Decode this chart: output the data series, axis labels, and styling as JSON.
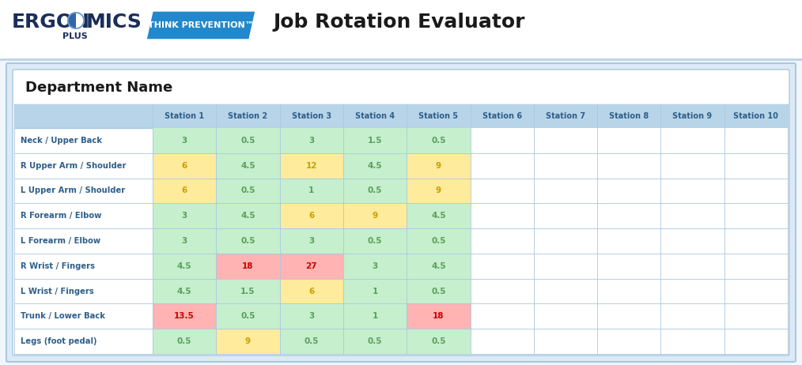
{
  "title": "Job Rotation Evaluator",
  "dept_label": "Department Name",
  "columns": [
    "",
    "Station 1",
    "Station 2",
    "Station 3",
    "Station 4",
    "Station 5",
    "Station 6",
    "Station 7",
    "Station 8",
    "Station 9",
    "Station 10"
  ],
  "rows": [
    "Neck / Upper Back",
    "R Upper Arm / Shoulder",
    "L Upper Arm / Shoulder",
    "R Forearm / Elbow",
    "L Forearm / Elbow",
    "R Wrist / Fingers",
    "L Wrist / Fingers",
    "Trunk / Lower Back",
    "Legs (foot pedal)"
  ],
  "values": [
    [
      "3",
      "0.5",
      "3",
      "1.5",
      "0.5",
      "",
      "",
      "",
      "",
      ""
    ],
    [
      "6",
      "4.5",
      "12",
      "4.5",
      "9",
      "",
      "",
      "",
      "",
      ""
    ],
    [
      "6",
      "0.5",
      "1",
      "0.5",
      "9",
      "",
      "",
      "",
      "",
      ""
    ],
    [
      "3",
      "4.5",
      "6",
      "9",
      "4.5",
      "",
      "",
      "",
      "",
      ""
    ],
    [
      "3",
      "0.5",
      "3",
      "0.5",
      "0.5",
      "",
      "",
      "",
      "",
      ""
    ],
    [
      "4.5",
      "18",
      "27",
      "3",
      "4.5",
      "",
      "",
      "",
      "",
      ""
    ],
    [
      "4.5",
      "1.5",
      "6",
      "1",
      "0.5",
      "",
      "",
      "",
      "",
      ""
    ],
    [
      "13.5",
      "0.5",
      "3",
      "1",
      "18",
      "",
      "",
      "",
      "",
      ""
    ],
    [
      "0.5",
      "9",
      "0.5",
      "0.5",
      "0.5",
      "",
      "",
      "",
      "",
      ""
    ]
  ],
  "cell_colors": [
    [
      "#c6efce",
      "#c6efce",
      "#c6efce",
      "#c6efce",
      "#c6efce",
      "#ffffff",
      "#ffffff",
      "#ffffff",
      "#ffffff",
      "#ffffff"
    ],
    [
      "#ffeb9c",
      "#c6efce",
      "#ffeb9c",
      "#c6efce",
      "#ffeb9c",
      "#ffffff",
      "#ffffff",
      "#ffffff",
      "#ffffff",
      "#ffffff"
    ],
    [
      "#ffeb9c",
      "#c6efce",
      "#c6efce",
      "#c6efce",
      "#ffeb9c",
      "#ffffff",
      "#ffffff",
      "#ffffff",
      "#ffffff",
      "#ffffff"
    ],
    [
      "#c6efce",
      "#c6efce",
      "#ffeb9c",
      "#ffeb9c",
      "#c6efce",
      "#ffffff",
      "#ffffff",
      "#ffffff",
      "#ffffff",
      "#ffffff"
    ],
    [
      "#c6efce",
      "#c6efce",
      "#c6efce",
      "#c6efce",
      "#c6efce",
      "#ffffff",
      "#ffffff",
      "#ffffff",
      "#ffffff",
      "#ffffff"
    ],
    [
      "#c6efce",
      "#ffb3b3",
      "#ffb3b3",
      "#c6efce",
      "#c6efce",
      "#ffffff",
      "#ffffff",
      "#ffffff",
      "#ffffff",
      "#ffffff"
    ],
    [
      "#c6efce",
      "#c6efce",
      "#ffeb9c",
      "#c6efce",
      "#c6efce",
      "#ffffff",
      "#ffffff",
      "#ffffff",
      "#ffffff",
      "#ffffff"
    ],
    [
      "#ffb3b3",
      "#c6efce",
      "#c6efce",
      "#c6efce",
      "#ffb3b3",
      "#ffffff",
      "#ffffff",
      "#ffffff",
      "#ffffff",
      "#ffffff"
    ],
    [
      "#c6efce",
      "#ffeb9c",
      "#c6efce",
      "#c6efce",
      "#c6efce",
      "#ffffff",
      "#ffffff",
      "#ffffff",
      "#ffffff",
      "#ffffff"
    ]
  ],
  "text_colors": [
    [
      "#5a9e5a",
      "#5a9e5a",
      "#5a9e5a",
      "#5a9e5a",
      "#5a9e5a",
      "#000000",
      "#000000",
      "#000000",
      "#000000",
      "#000000"
    ],
    [
      "#c8a000",
      "#5a9e5a",
      "#c8a000",
      "#5a9e5a",
      "#c8a000",
      "#000000",
      "#000000",
      "#000000",
      "#000000",
      "#000000"
    ],
    [
      "#c8a000",
      "#5a9e5a",
      "#5a9e5a",
      "#5a9e5a",
      "#c8a000",
      "#000000",
      "#000000",
      "#000000",
      "#000000",
      "#000000"
    ],
    [
      "#5a9e5a",
      "#5a9e5a",
      "#c8a000",
      "#c8a000",
      "#5a9e5a",
      "#000000",
      "#000000",
      "#000000",
      "#000000",
      "#000000"
    ],
    [
      "#5a9e5a",
      "#5a9e5a",
      "#5a9e5a",
      "#5a9e5a",
      "#5a9e5a",
      "#000000",
      "#000000",
      "#000000",
      "#000000",
      "#000000"
    ],
    [
      "#5a9e5a",
      "#cc0000",
      "#cc0000",
      "#5a9e5a",
      "#5a9e5a",
      "#000000",
      "#000000",
      "#000000",
      "#000000",
      "#000000"
    ],
    [
      "#5a9e5a",
      "#5a9e5a",
      "#c8a000",
      "#5a9e5a",
      "#5a9e5a",
      "#000000",
      "#000000",
      "#000000",
      "#000000",
      "#000000"
    ],
    [
      "#cc0000",
      "#5a9e5a",
      "#5a9e5a",
      "#5a9e5a",
      "#cc0000",
      "#000000",
      "#000000",
      "#000000",
      "#000000",
      "#000000"
    ],
    [
      "#5a9e5a",
      "#c8a000",
      "#5a9e5a",
      "#5a9e5a",
      "#5a9e5a",
      "#000000",
      "#000000",
      "#000000",
      "#000000",
      "#000000"
    ]
  ],
  "header_bg": "#b8d4e8",
  "outer_bg": "#ddeaf5",
  "header_text_color": "#2e5f8a",
  "row_label_text_color": "#2e5f8a",
  "logo_text_color": "#1a2e5a",
  "think_bg_color": "#2288cc",
  "fig_bg": "#f0f6fc"
}
